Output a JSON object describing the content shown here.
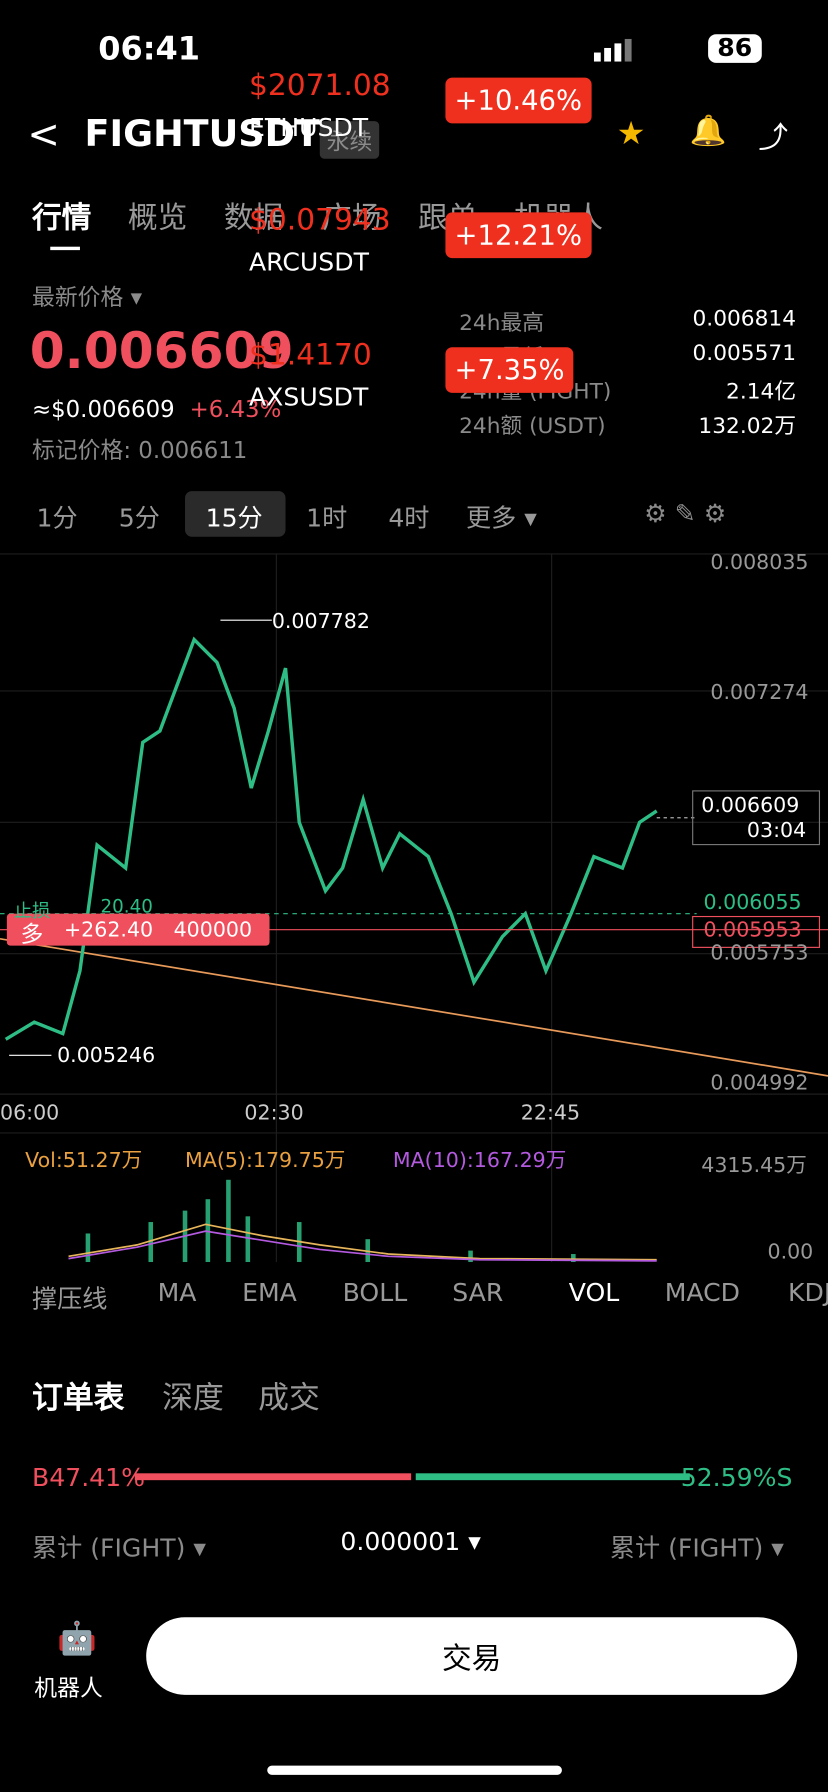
{
  "status": {
    "time": "06:41",
    "battery": "86"
  },
  "header": {
    "symbol": "FIGHTUSDT",
    "contract": "永续"
  },
  "tabs": [
    "行情",
    "概览",
    "数据",
    "广场",
    "跟单",
    "机器人"
  ],
  "price": {
    "label": "最新价格 ▾",
    "last": "0.006609",
    "usd": "≈$0.006609",
    "change": "+6.43%",
    "mark": "标记价格: 0.006611"
  },
  "stats": [
    {
      "label": "24h最高",
      "value": "0.006814"
    },
    {
      "label": "24h最低",
      "value": "0.005571"
    },
    {
      "label": "24h量 (FIGHT)",
      "value": "2.14亿"
    },
    {
      "label": "24h额 (USDT)",
      "value": "132.02万"
    }
  ],
  "tickers": [
    {
      "price": "$2071.08",
      "symbol": "ETHUSDT",
      "change": "+10.46%"
    },
    {
      "price": "$0.07943",
      "symbol": "ARCUSDT",
      "change": "+12.21%"
    },
    {
      "price": "$1.4170",
      "symbol": "AXSUSDT",
      "change": "+7.35%"
    }
  ],
  "intervals": [
    "1分",
    "5分",
    "15分",
    "1时",
    "4时",
    "更多 ▾"
  ],
  "chart": {
    "price_axis": [
      "0.008035",
      "0.007274",
      "0.005753",
      "0.004992"
    ],
    "time_axis": [
      "06:00",
      "02:30",
      "22:45"
    ],
    "high": "0.007782",
    "low": "0.005246",
    "last": "0.006609",
    "countdown": "03:04",
    "stop_price": "0.006055",
    "stop_label": "止损",
    "stop_value": "20.40",
    "position_side": "多",
    "position_pnl": "+262.40",
    "position_size": "400000",
    "position_price": "0.005953",
    "vol": "Vol:51.27万",
    "ma5": "MA(5):179.75万",
    "ma10": "MA(10):167.29万",
    "vol_max": "4315.45万",
    "vol_min": "0.00"
  },
  "indicators": [
    "撑压线",
    "MA",
    "EMA",
    "BOLL",
    "SAR",
    "VOL",
    "MACD",
    "KDJ"
  ],
  "book": {
    "tabs": [
      "订单表",
      "深度",
      "成交"
    ],
    "buy": "B47.41%",
    "sell": "52.59%S",
    "left": "累计 (FIGHT) ▾",
    "precision": "0.000001 ▾",
    "right": "累计 (FIGHT) ▾"
  },
  "footer": {
    "robot": "机器人",
    "trade": "交易"
  }
}
